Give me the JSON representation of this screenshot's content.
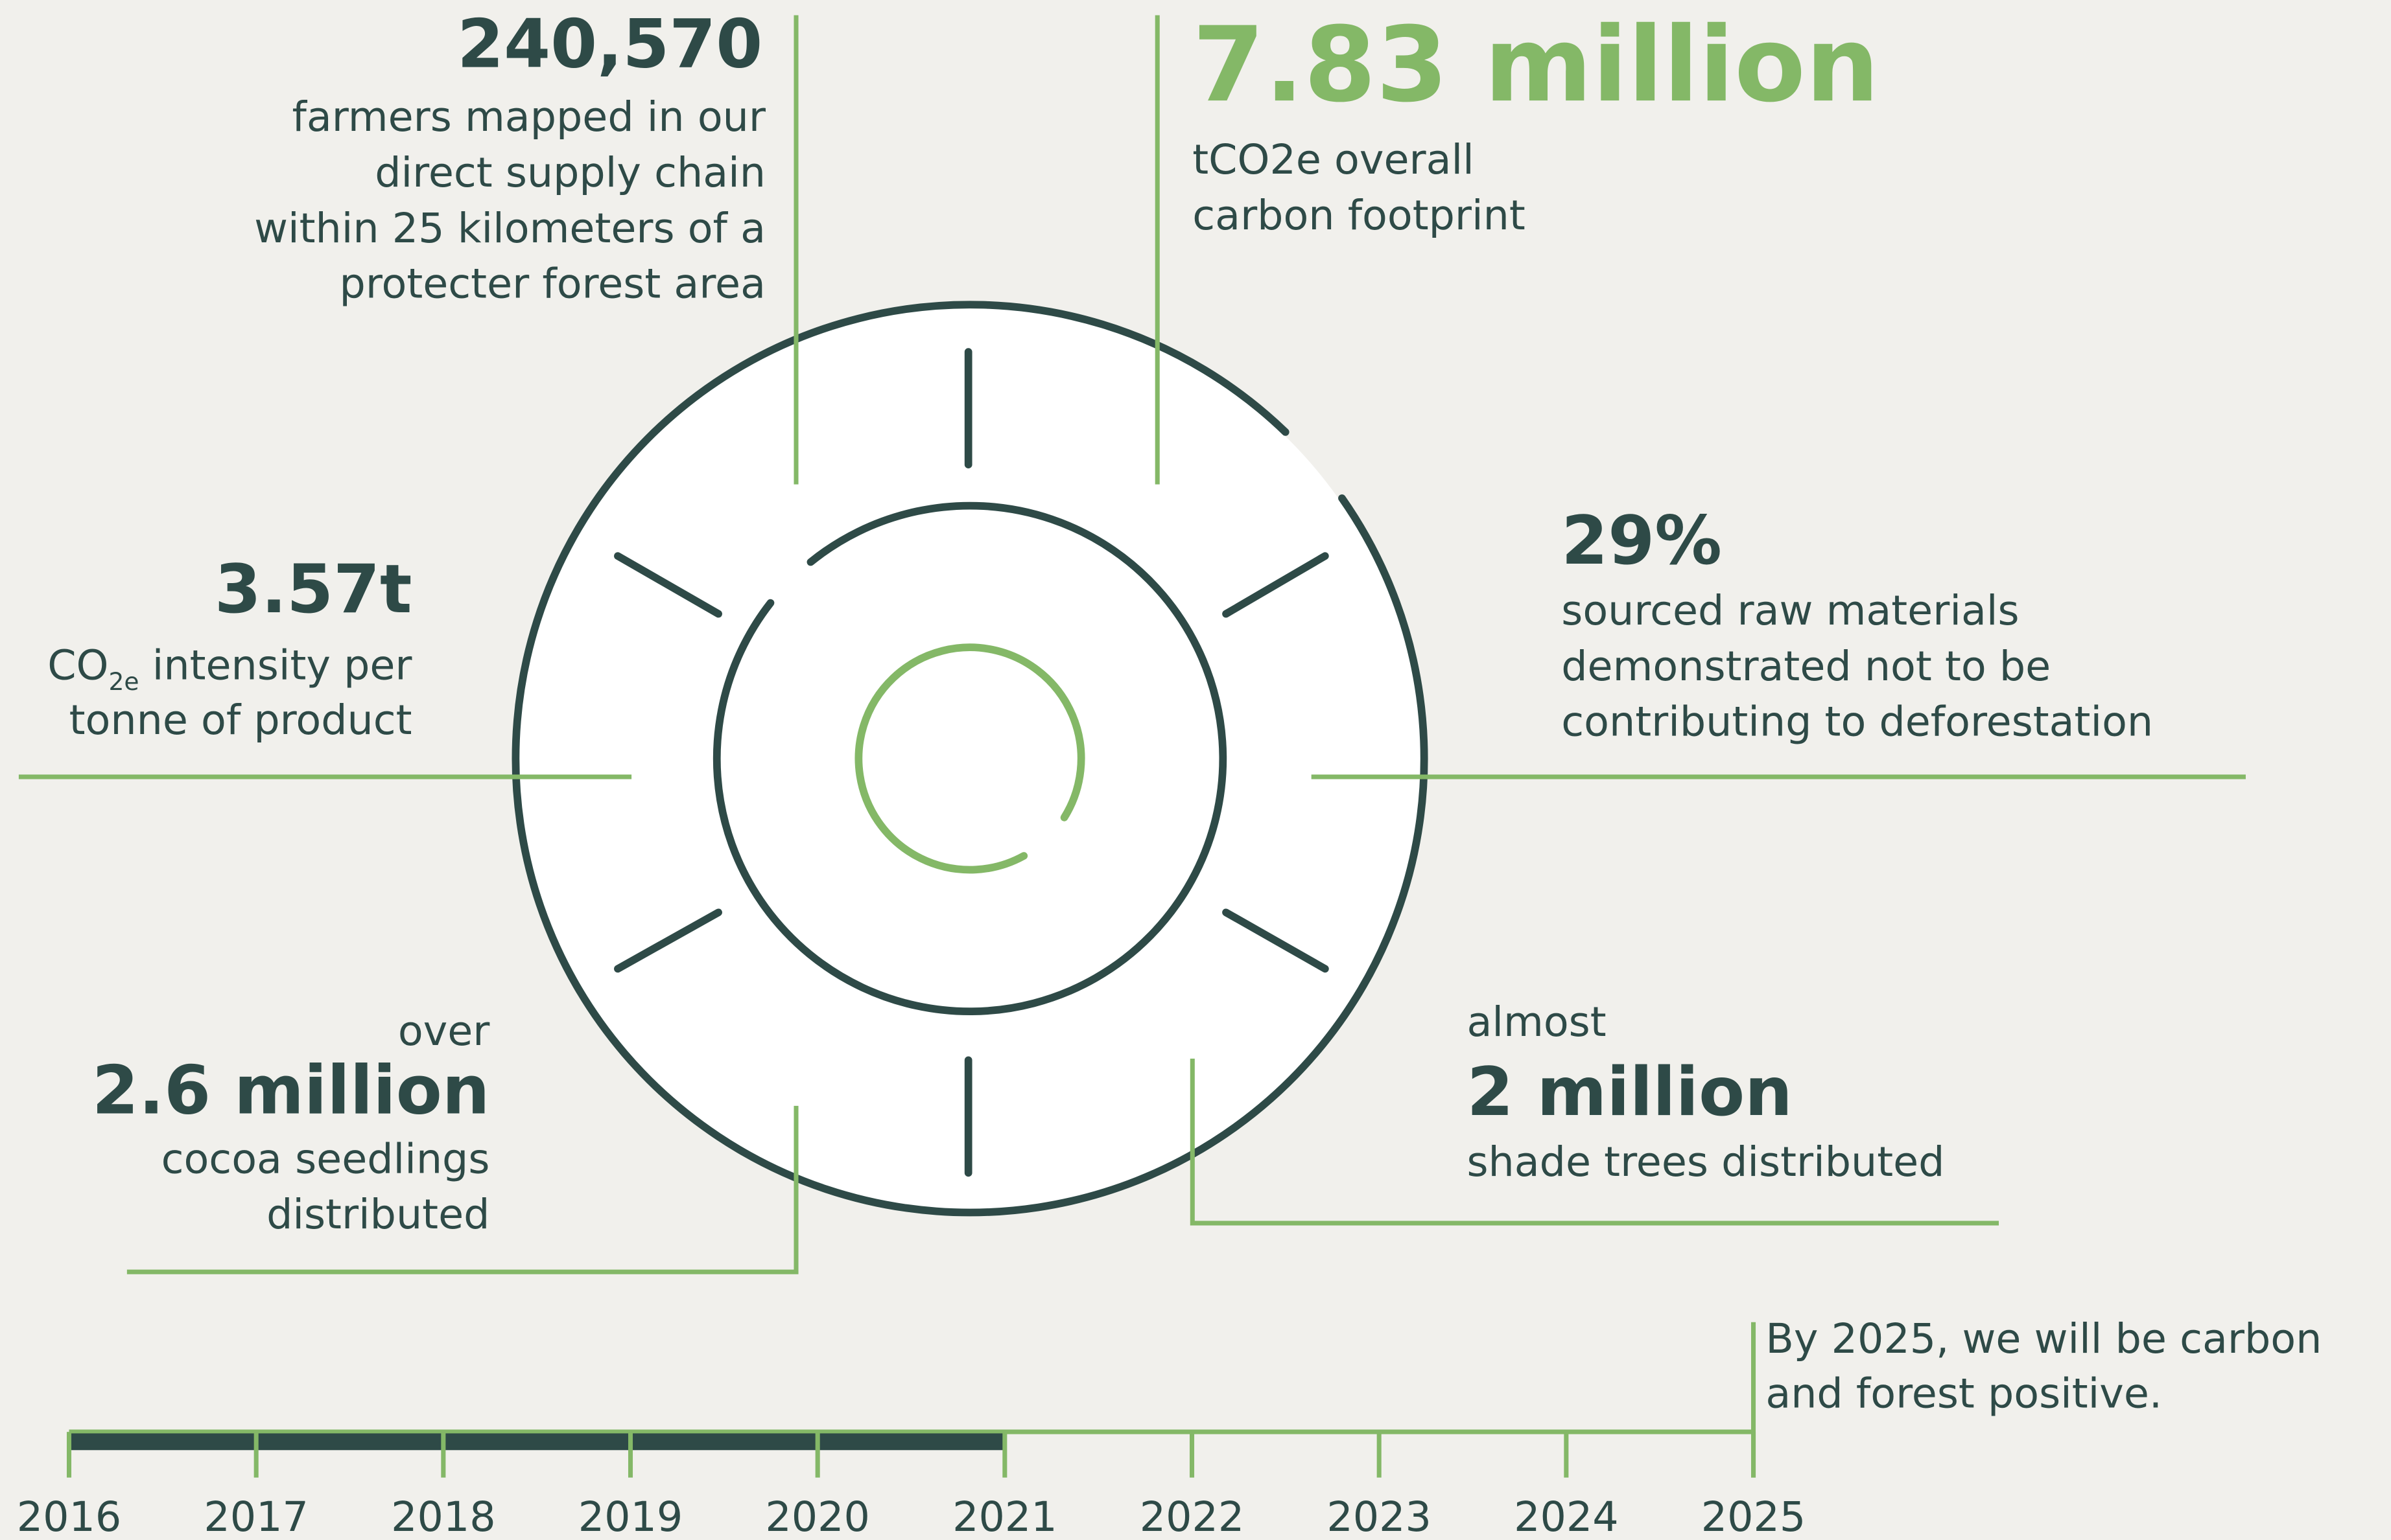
{
  "stats": [
    {
      "value": "240,570",
      "lines": [
        "farmers mapped in our",
        "direct supply chain",
        "within 25 kilometers of a",
        "protecter forest area"
      ]
    },
    {
      "value": "7.83 million",
      "lines": [
        "tCO2e overall",
        "carbon footprint"
      ]
    },
    {
      "value": "29%",
      "lines": [
        "sourced raw materials",
        "demonstrated not to be",
        "contributing to deforestation"
      ]
    },
    {
      "value": "3.57t",
      "unit": "CO",
      "unit_sub": "2e",
      "lines": [
        " intensity per",
        "tonne of product"
      ]
    },
    {
      "prefix": "over",
      "value": "2.6 million",
      "lines": [
        "cocoa seedlings",
        "distributed"
      ]
    },
    {
      "prefix": "almost",
      "value": "2 million",
      "lines": [
        "shade trees distributed"
      ]
    }
  ],
  "timeline": {
    "years": [
      "2016",
      "2017",
      "2018",
      "2019",
      "2020",
      "2021",
      "2022",
      "2023",
      "2024",
      "2025"
    ],
    "goal": [
      "By 2025, we will be carbon",
      "and forest positive."
    ]
  }
}
